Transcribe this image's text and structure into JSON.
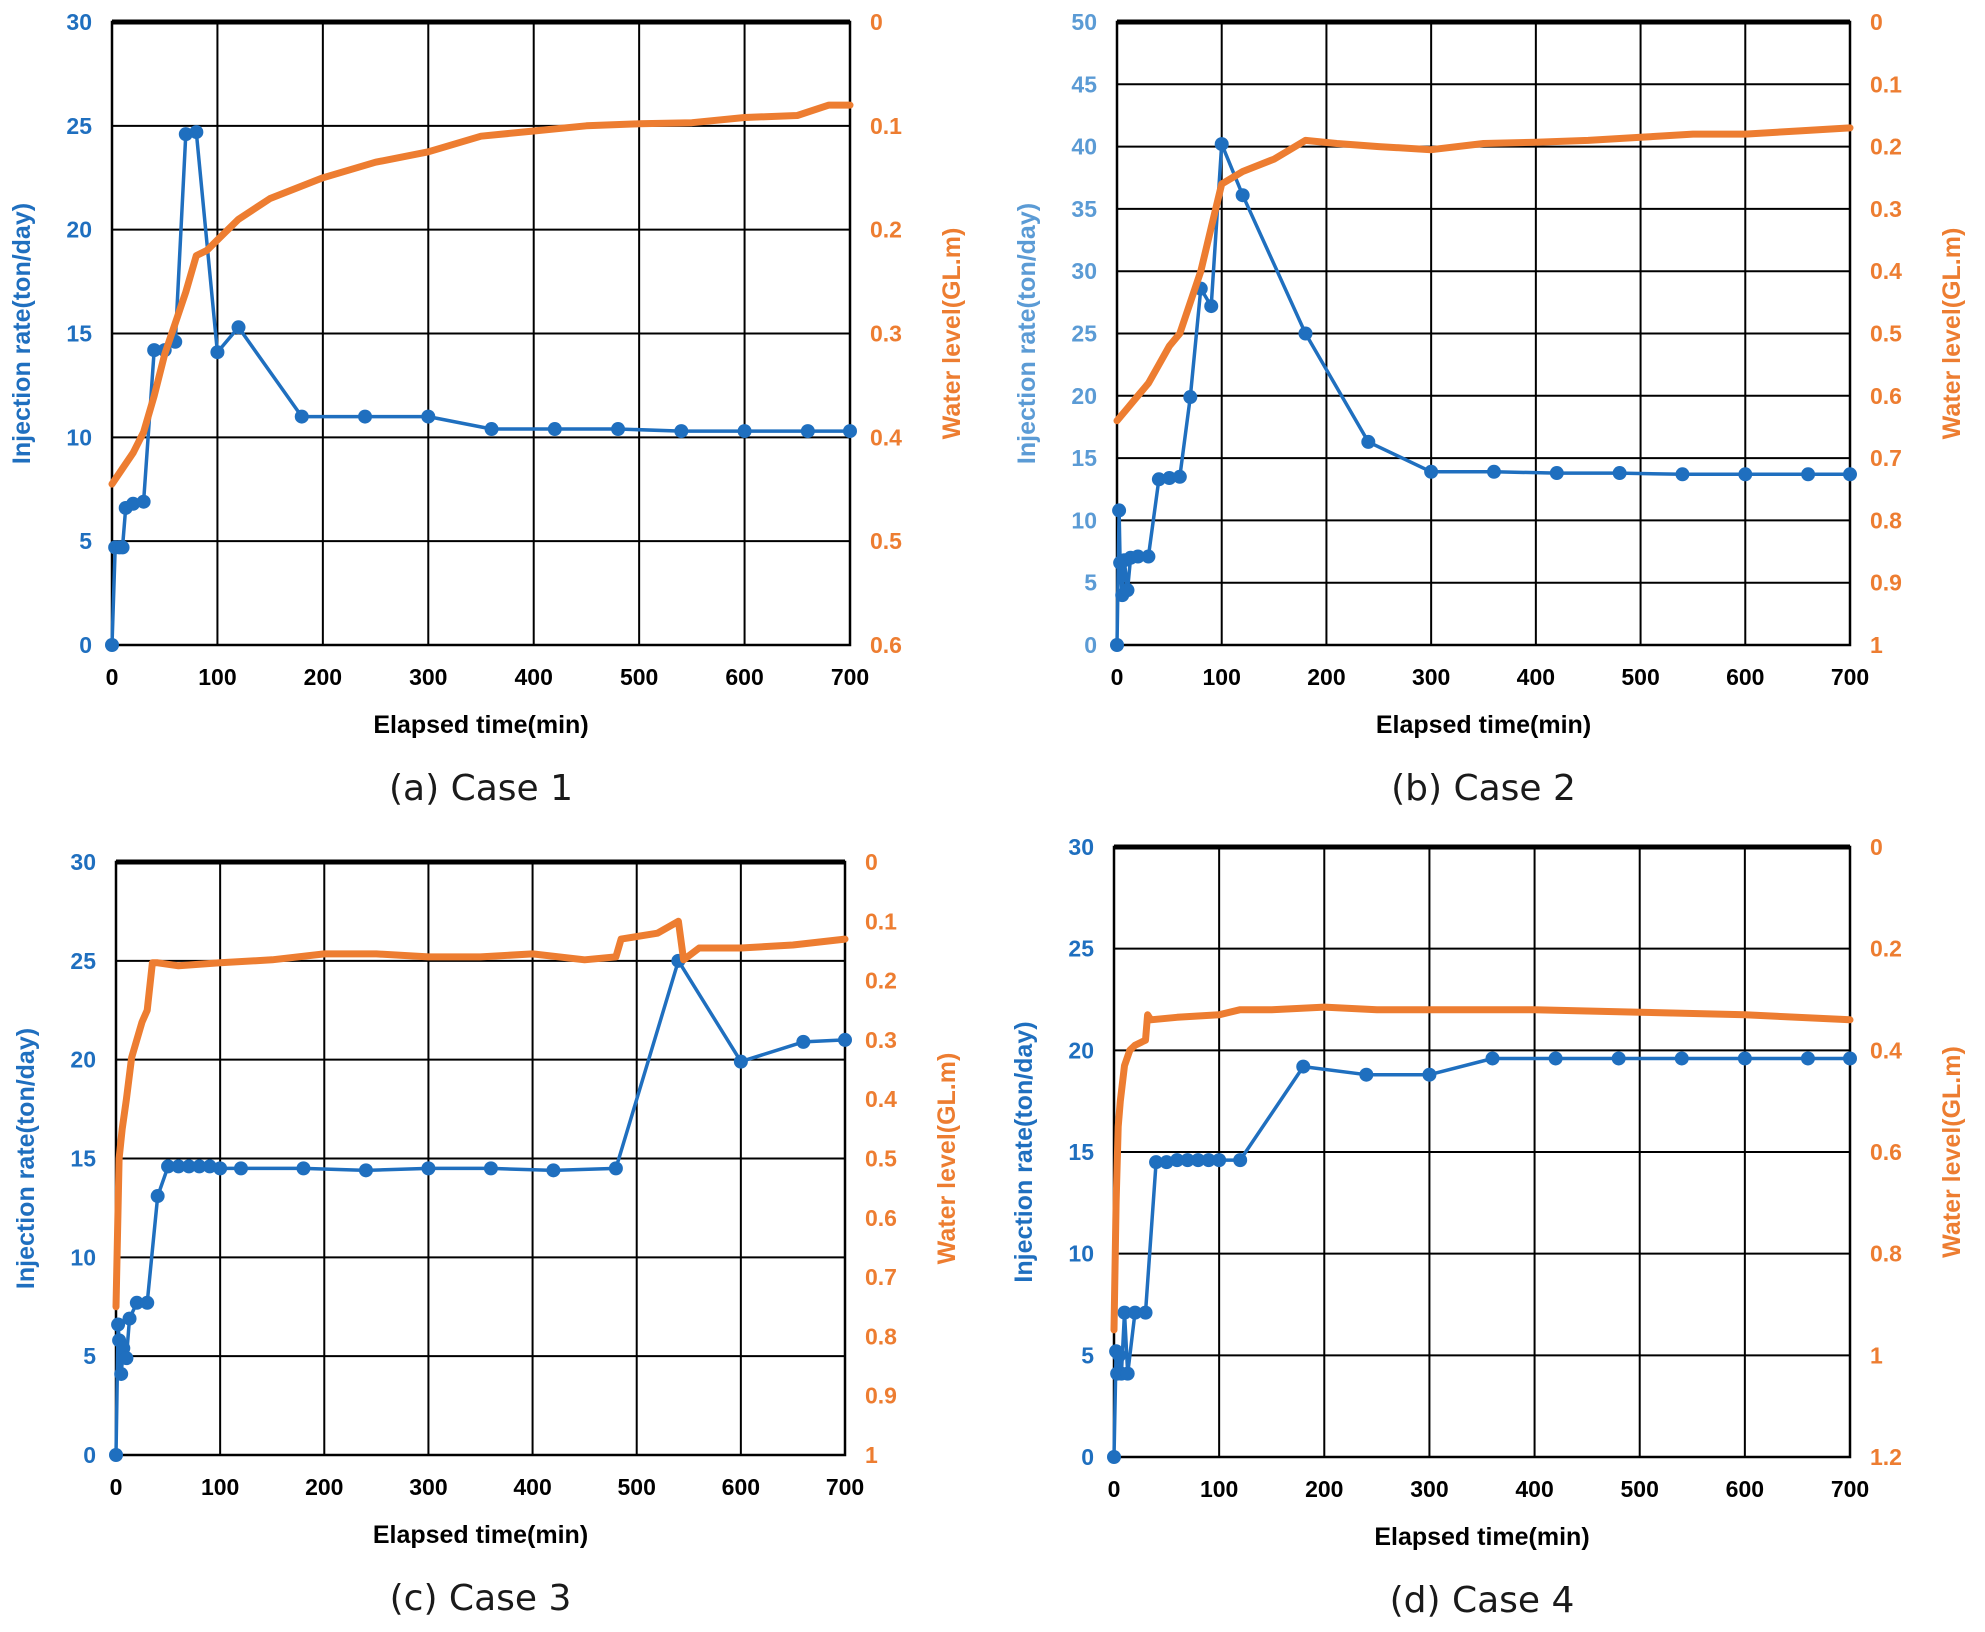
{
  "colors": {
    "rate": "#1f6fbf",
    "rate_axis": "#1f6fbf",
    "rate_axis_light": "#5b9bd5",
    "level": "#ed7d31"
  },
  "chart_data": [
    {
      "type": "line",
      "caption": "(a) Case 1",
      "xlabel": "Elapsed time(min)",
      "ylabel_left": "Injection rate(ton/day)",
      "ylabel_right": "Water level(GL.m)",
      "xlim": [
        0,
        700
      ],
      "xticks": [
        0,
        100,
        200,
        300,
        400,
        500,
        600,
        700
      ],
      "ylim_left": [
        0,
        30
      ],
      "yticks_left": [
        0,
        5,
        10,
        15,
        20,
        25,
        30
      ],
      "ylim_right": [
        0,
        0.6
      ],
      "right_inverted": true,
      "yticks_right": [
        0,
        0.1,
        0.2,
        0.3,
        0.4,
        0.5,
        0.6
      ],
      "yticks_right_labels": [
        "0",
        "0.1",
        "0.2",
        "0.3",
        "0.4",
        "0.5",
        "0.6"
      ],
      "hgrid": [
        5,
        10,
        15,
        20,
        25
      ],
      "grid": true,
      "rate_axis_color": "#1f6fbf",
      "series": [
        {
          "name": "Injection rate",
          "axis": "left",
          "markers": true,
          "x": [
            0,
            3,
            7,
            10,
            13,
            20,
            30,
            40,
            50,
            60,
            70,
            80,
            100,
            120,
            180,
            240,
            300,
            360,
            420,
            480,
            540,
            600,
            660,
            700
          ],
          "y": [
            0,
            4.7,
            4.7,
            4.7,
            6.6,
            6.8,
            6.9,
            14.2,
            14.2,
            14.6,
            24.6,
            24.7,
            14.1,
            15.3,
            11.0,
            11.0,
            11.0,
            10.4,
            10.4,
            10.4,
            10.3,
            10.3,
            10.3,
            10.3
          ]
        },
        {
          "name": "Water level",
          "axis": "right",
          "markers": false,
          "x": [
            0,
            10,
            20,
            30,
            40,
            50,
            60,
            70,
            80,
            90,
            100,
            120,
            150,
            200,
            250,
            300,
            350,
            400,
            450,
            500,
            550,
            600,
            650,
            680,
            700
          ],
          "y": [
            0.445,
            0.43,
            0.415,
            0.395,
            0.36,
            0.32,
            0.29,
            0.26,
            0.225,
            0.22,
            0.21,
            0.19,
            0.17,
            0.15,
            0.135,
            0.125,
            0.11,
            0.105,
            0.1,
            0.098,
            0.097,
            0.092,
            0.09,
            0.08,
            0.08
          ]
        }
      ]
    },
    {
      "type": "line",
      "caption": "(b) Case 2",
      "xlabel": "Elapsed time(min)",
      "ylabel_left": "Injection rate(ton/day)",
      "ylabel_right": "Water level(GL.m)",
      "xlim": [
        0,
        700
      ],
      "xticks": [
        0,
        100,
        200,
        300,
        400,
        500,
        600,
        700
      ],
      "ylim_left": [
        0,
        50
      ],
      "yticks_left": [
        0,
        5,
        10,
        15,
        20,
        25,
        30,
        35,
        40,
        45,
        50
      ],
      "ylim_right": [
        0,
        1
      ],
      "right_inverted": true,
      "yticks_right": [
        0,
        0.1,
        0.2,
        0.3,
        0.4,
        0.5,
        0.6,
        0.7,
        0.8,
        0.9,
        1
      ],
      "yticks_right_labels": [
        "0",
        "0.1",
        "0.2",
        "0.3",
        "0.4",
        "0.5",
        "0.6",
        "0.7",
        "0.8",
        "0.9",
        "1"
      ],
      "hgrid": [
        5,
        10,
        15,
        20,
        25,
        30,
        35,
        40,
        45
      ],
      "grid": true,
      "rate_axis_color": "#5b9bd5",
      "series": [
        {
          "name": "Injection rate",
          "axis": "left",
          "markers": true,
          "x": [
            0,
            2,
            3,
            5,
            7,
            10,
            13,
            20,
            30,
            40,
            50,
            60,
            70,
            80,
            90,
            100,
            120,
            180,
            240,
            300,
            360,
            420,
            480,
            540,
            600,
            660,
            700
          ],
          "y": [
            0,
            10.8,
            6.6,
            4.0,
            6.8,
            4.4,
            7.0,
            7.1,
            7.1,
            13.3,
            13.4,
            13.5,
            19.9,
            28.6,
            27.2,
            40.2,
            36.1,
            25.0,
            16.3,
            13.9,
            13.9,
            13.8,
            13.8,
            13.7,
            13.7,
            13.7,
            13.7
          ]
        },
        {
          "name": "Water level",
          "axis": "right",
          "markers": false,
          "x": [
            0,
            10,
            20,
            30,
            40,
            50,
            60,
            70,
            80,
            90,
            100,
            120,
            150,
            180,
            210,
            250,
            300,
            350,
            400,
            450,
            500,
            550,
            600,
            650,
            700
          ],
          "y": [
            0.64,
            0.62,
            0.6,
            0.58,
            0.55,
            0.52,
            0.5,
            0.45,
            0.4,
            0.33,
            0.26,
            0.24,
            0.22,
            0.19,
            0.195,
            0.2,
            0.205,
            0.195,
            0.193,
            0.19,
            0.185,
            0.18,
            0.18,
            0.175,
            0.17
          ]
        }
      ]
    },
    {
      "type": "line",
      "caption": "(c) Case 3",
      "xlabel": "Elapsed time(min)",
      "ylabel_left": "Injection rate(ton/day)",
      "ylabel_right": "Water level(GL.m)",
      "xlim": [
        0,
        700
      ],
      "xticks": [
        0,
        100,
        200,
        300,
        400,
        500,
        600,
        700
      ],
      "ylim_left": [
        0,
        30
      ],
      "yticks_left": [
        0,
        5,
        10,
        15,
        20,
        25,
        30
      ],
      "ylim_right": [
        0,
        1
      ],
      "right_inverted": true,
      "yticks_right": [
        0,
        0.1,
        0.2,
        0.3,
        0.4,
        0.5,
        0.6,
        0.7,
        0.8,
        0.9,
        1
      ],
      "yticks_right_labels": [
        "0",
        "0.1",
        "0.2",
        "0.3",
        "0.4",
        "0.5",
        "0.6",
        "0.7",
        "0.8",
        "0.9",
        "1"
      ],
      "hgrid": [
        5,
        10,
        15,
        20,
        25
      ],
      "grid": true,
      "rate_axis_color": "#1f6fbf",
      "series": [
        {
          "name": "Injection rate",
          "axis": "left",
          "markers": true,
          "x": [
            0,
            2,
            3,
            5,
            7,
            10,
            13,
            20,
            30,
            40,
            50,
            60,
            70,
            80,
            90,
            100,
            120,
            180,
            240,
            300,
            360,
            420,
            480,
            540,
            600,
            660,
            700
          ],
          "y": [
            0,
            6.6,
            5.8,
            4.1,
            5.4,
            4.9,
            6.9,
            7.7,
            7.7,
            13.1,
            14.6,
            14.6,
            14.6,
            14.6,
            14.6,
            14.5,
            14.5,
            14.5,
            14.4,
            14.5,
            14.5,
            14.4,
            14.5,
            25.0,
            19.9,
            20.9,
            21.0
          ]
        },
        {
          "name": "Water level",
          "axis": "right",
          "markers": false,
          "x": [
            0,
            3,
            6,
            10,
            15,
            20,
            25,
            30,
            35,
            40,
            60,
            100,
            150,
            200,
            250,
            300,
            350,
            400,
            450,
            480,
            485,
            520,
            540,
            545,
            560,
            600,
            650,
            700
          ],
          "y": [
            0.75,
            0.5,
            0.45,
            0.4,
            0.33,
            0.3,
            0.27,
            0.25,
            0.17,
            0.17,
            0.175,
            0.17,
            0.165,
            0.155,
            0.155,
            0.16,
            0.16,
            0.155,
            0.165,
            0.16,
            0.13,
            0.12,
            0.1,
            0.165,
            0.145,
            0.145,
            0.14,
            0.13
          ]
        }
      ]
    },
    {
      "type": "line",
      "caption": "(d) Case 4",
      "xlabel": "Elapsed time(min)",
      "ylabel_left": "Injection rate(ton/day)",
      "ylabel_right": "Water level(GL.m)",
      "xlim": [
        0,
        700
      ],
      "xticks": [
        0,
        100,
        200,
        300,
        400,
        500,
        600,
        700
      ],
      "ylim_left": [
        0,
        30
      ],
      "yticks_left": [
        0,
        5,
        10,
        15,
        20,
        25,
        30
      ],
      "ylim_right": [
        0,
        1.2
      ],
      "right_inverted": true,
      "yticks_right": [
        0,
        0.2,
        0.4,
        0.6,
        0.8,
        1,
        1.2
      ],
      "yticks_right_labels": [
        "0",
        "0.2",
        "0.4",
        "0.6",
        "0.8",
        "1",
        "1.2"
      ],
      "hgrid": [
        5,
        10,
        15,
        20,
        25
      ],
      "grid": true,
      "rate_axis_color": "#1f6fbf",
      "series": [
        {
          "name": "Injection rate",
          "axis": "left",
          "markers": true,
          "x": [
            0,
            2,
            3,
            5,
            7,
            10,
            13,
            20,
            30,
            40,
            50,
            60,
            70,
            80,
            90,
            100,
            120,
            180,
            240,
            300,
            360,
            420,
            480,
            540,
            600,
            660,
            700
          ],
          "y": [
            0,
            5.2,
            4.1,
            5.0,
            4.1,
            7.1,
            4.1,
            7.1,
            7.1,
            14.5,
            14.5,
            14.6,
            14.6,
            14.6,
            14.6,
            14.6,
            14.6,
            19.2,
            18.8,
            18.8,
            19.6,
            19.6,
            19.6,
            19.6,
            19.6,
            19.6,
            19.6
          ]
        },
        {
          "name": "Water level",
          "axis": "right",
          "markers": false,
          "x": [
            0,
            2,
            4,
            6,
            10,
            15,
            20,
            30,
            32,
            35,
            60,
            100,
            120,
            150,
            200,
            250,
            300,
            400,
            500,
            600,
            700
          ],
          "y": [
            0.95,
            0.7,
            0.55,
            0.5,
            0.43,
            0.4,
            0.39,
            0.38,
            0.33,
            0.34,
            0.335,
            0.33,
            0.32,
            0.32,
            0.315,
            0.32,
            0.32,
            0.32,
            0.325,
            0.33,
            0.34
          ]
        }
      ]
    }
  ]
}
